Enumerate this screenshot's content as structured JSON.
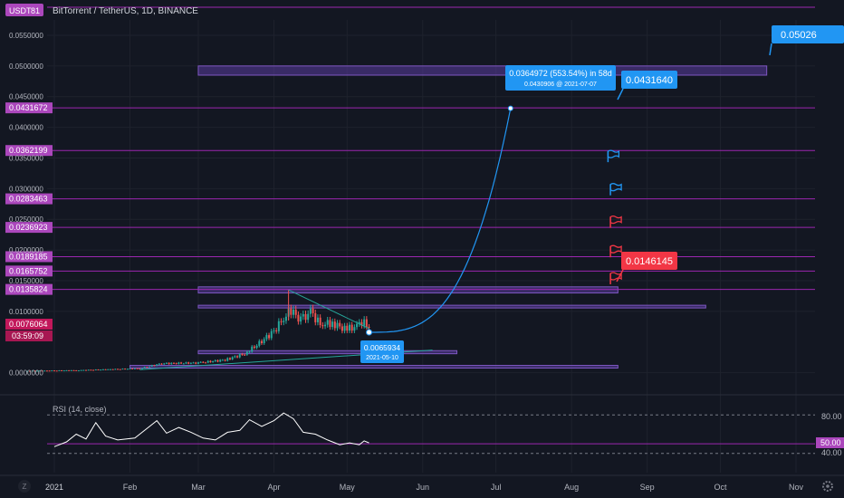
{
  "header": {
    "currency": "USDT",
    "title": "BitTorrent / TetherUS, 1D, BINANCE"
  },
  "colors": {
    "background": "#131722",
    "grid": "#1e222d",
    "level_line": "#9c27b0",
    "level_tag": "#ab47bc",
    "zone_fill": "#5a3c9e",
    "up_candle": "#26a69a",
    "down_candle": "#ef5350",
    "projection": "#2196f3",
    "callout_blue": "#2196f3",
    "callout_red": "#f23645",
    "rsi_line": "#ffffff"
  },
  "chart_data": {
    "type": "candlestick",
    "symbol": "BitTorrent / TetherUS",
    "interval": "1D",
    "exchange": "BINANCE",
    "ylim": [
      -0.003,
      0.0575
    ],
    "y_ticks": [
      0.0,
      0.01,
      0.015,
      0.02,
      0.025,
      0.03,
      0.035,
      0.04,
      0.045,
      0.05,
      0.055
    ],
    "y_tick_labels": [
      "0.0000000",
      "0.0100000",
      "0.0150000",
      "0.0200000",
      "0.0250000",
      "0.0300000",
      "0.0350000",
      "0.0400000",
      "0.0450000",
      "0.0500000",
      "0.0550000"
    ],
    "x_ticks": [
      {
        "label": "2021",
        "date": "2021-01-01"
      },
      {
        "label": "Feb",
        "date": "2021-02-01"
      },
      {
        "label": "Mar",
        "date": "2021-03-01"
      },
      {
        "label": "Apr",
        "date": "2021-04-01"
      },
      {
        "label": "May",
        "date": "2021-05-01"
      },
      {
        "label": "Jun",
        "date": "2021-06-01"
      },
      {
        "label": "Jul",
        "date": "2021-07-01"
      },
      {
        "label": "Aug",
        "date": "2021-08-01"
      },
      {
        "label": "Sep",
        "date": "2021-09-01"
      },
      {
        "label": "Oct",
        "date": "2021-10-01"
      },
      {
        "label": "Nov",
        "date": "2021-11-01"
      }
    ],
    "price_series": [
      {
        "date": "2020-12-20",
        "close": 0.0003
      },
      {
        "date": "2021-01-10",
        "close": 0.0004
      },
      {
        "date": "2021-02-05",
        "close": 0.0007
      },
      {
        "date": "2021-02-14",
        "close": 0.0015
      },
      {
        "date": "2021-03-01",
        "close": 0.0016
      },
      {
        "date": "2021-03-12",
        "close": 0.0021
      },
      {
        "date": "2021-03-20",
        "close": 0.0031
      },
      {
        "date": "2021-03-26",
        "close": 0.0048
      },
      {
        "date": "2021-04-01",
        "close": 0.0068
      },
      {
        "date": "2021-04-05",
        "close": 0.0089
      },
      {
        "date": "2021-04-08",
        "close": 0.0102
      },
      {
        "date": "2021-04-12",
        "close": 0.0085
      },
      {
        "date": "2021-04-16",
        "close": 0.0099
      },
      {
        "date": "2021-04-20",
        "close": 0.0079
      },
      {
        "date": "2021-04-25",
        "close": 0.0081
      },
      {
        "date": "2021-04-30",
        "close": 0.0071
      },
      {
        "date": "2021-05-04",
        "close": 0.0074
      },
      {
        "date": "2021-05-07",
        "close": 0.0083
      },
      {
        "date": "2021-05-10",
        "close": 0.0076
      }
    ],
    "levels": [
      0.0431672,
      0.0362199,
      0.0283463,
      0.0236923,
      0.0189185,
      0.0165752,
      0.0135824
    ],
    "level_labels": [
      "0.0431672",
      "0.0362199",
      "0.0283463",
      "0.0236923",
      "0.0189185",
      "0.0165752",
      "0.0135824"
    ],
    "zones": [
      {
        "from": "2021-03-01",
        "to": "2021-10-20",
        "low": 0.0485,
        "high": 0.05
      },
      {
        "from": "2021-03-01",
        "to": "2021-08-20",
        "low": 0.013,
        "high": 0.014
      },
      {
        "from": "2021-03-01",
        "to": "2021-09-25",
        "low": 0.0106,
        "high": 0.011
      },
      {
        "from": "2021-03-01",
        "to": "2021-06-15",
        "low": 0.0031,
        "high": 0.0036
      },
      {
        "from": "2021-02-01",
        "to": "2021-08-20",
        "low": 0.0008,
        "high": 0.0012
      }
    ],
    "projection": {
      "from_date": "2021-05-10",
      "from_price": 0.0065934,
      "to_date": "2021-07-07",
      "to_price": 0.0430906
    },
    "annotations": {
      "target_change": "0.0364972 (553.54%) in 58d",
      "target_point": "0.0430906 @ 2021-07-07",
      "start_price": "0.0065934",
      "start_date": "2021-05-10",
      "callout_top": "0.05026",
      "callout_mid": "0.0431640",
      "callout_low": "0.0146145"
    },
    "flags": [
      {
        "date": "2021-08-10",
        "price": 0.0352,
        "color": "blue"
      },
      {
        "date": "2021-08-11",
        "price": 0.0298,
        "color": "blue"
      },
      {
        "date": "2021-08-11",
        "price": 0.0245,
        "color": "red"
      },
      {
        "date": "2021-08-11",
        "price": 0.0197,
        "color": "red"
      },
      {
        "date": "2021-08-11",
        "price": 0.0153,
        "color": "red"
      }
    ],
    "last_price": "0.0076064",
    "countdown": "03:59:09",
    "top_tag": "81",
    "rsi": {
      "label": "RSI (14, close)",
      "upper": 80,
      "lower": 40,
      "value": 50,
      "upper_label": "80.00",
      "lower_label": "40.00",
      "value_label": "50.00",
      "values": [
        {
          "date": "2021-01-01",
          "v": 47
        },
        {
          "date": "2021-01-06",
          "v": 52
        },
        {
          "date": "2021-01-10",
          "v": 60
        },
        {
          "date": "2021-01-14",
          "v": 55
        },
        {
          "date": "2021-01-18",
          "v": 72
        },
        {
          "date": "2021-01-22",
          "v": 58
        },
        {
          "date": "2021-01-27",
          "v": 54
        },
        {
          "date": "2021-02-03",
          "v": 56
        },
        {
          "date": "2021-02-08",
          "v": 66
        },
        {
          "date": "2021-02-12",
          "v": 74
        },
        {
          "date": "2021-02-16",
          "v": 61
        },
        {
          "date": "2021-02-21",
          "v": 67
        },
        {
          "date": "2021-02-26",
          "v": 62
        },
        {
          "date": "2021-03-03",
          "v": 56
        },
        {
          "date": "2021-03-08",
          "v": 54
        },
        {
          "date": "2021-03-13",
          "v": 62
        },
        {
          "date": "2021-03-18",
          "v": 64
        },
        {
          "date": "2021-03-22",
          "v": 75
        },
        {
          "date": "2021-03-27",
          "v": 68
        },
        {
          "date": "2021-04-01",
          "v": 74
        },
        {
          "date": "2021-04-05",
          "v": 82
        },
        {
          "date": "2021-04-09",
          "v": 76
        },
        {
          "date": "2021-04-13",
          "v": 62
        },
        {
          "date": "2021-04-18",
          "v": 60
        },
        {
          "date": "2021-04-23",
          "v": 54
        },
        {
          "date": "2021-04-28",
          "v": 49
        },
        {
          "date": "2021-05-02",
          "v": 51
        },
        {
          "date": "2021-05-06",
          "v": 49
        },
        {
          "date": "2021-05-08",
          "v": 53
        },
        {
          "date": "2021-05-10",
          "v": 51
        }
      ]
    }
  },
  "footer": {
    "timezone_icon": "Z",
    "settings_icon": "gear"
  }
}
